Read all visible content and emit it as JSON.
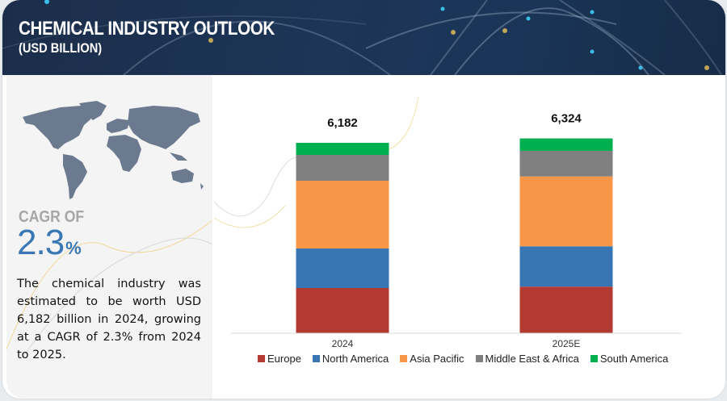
{
  "header": {
    "title": "CHEMICAL INDUSTRY OUTLOOK",
    "subtitle": "(USD BILLION)"
  },
  "left_panel": {
    "map_icon": "world-map-icon",
    "cagr_label": "CAGR OF",
    "cagr_value": "2.3",
    "cagr_unit": "%",
    "summary": "The chemical industry was estimated to be worth USD 6,182 billion in 2024, growing at a CAGR of 2.3% from 2024 to 2025."
  },
  "chart_data": {
    "type": "bar",
    "stacked": true,
    "title": "Chemical Industry Outlook (USD Billion)",
    "xlabel": "",
    "ylabel": "",
    "categories": [
      "2024",
      "2025E"
    ],
    "totals": [
      "6,182",
      "6,324"
    ],
    "total_values": [
      6182,
      6324
    ],
    "series": [
      {
        "name": "Europe",
        "color": "#b33a31",
        "values": [
          1467,
          1512
        ]
      },
      {
        "name": "North America",
        "color": "#3776b3",
        "values": [
          1284,
          1310
        ]
      },
      {
        "name": "Asia Pacific",
        "color": "#f79646",
        "values": [
          2200,
          2268
        ]
      },
      {
        "name": "Middle East & Africa",
        "color": "#808080",
        "values": [
          838,
          831
        ]
      },
      {
        "name": "South America",
        "color": "#00b050",
        "values": [
          393,
          403
        ]
      }
    ],
    "ylim": [
      0,
      6700
    ],
    "grid": false,
    "legend": "bottom"
  }
}
